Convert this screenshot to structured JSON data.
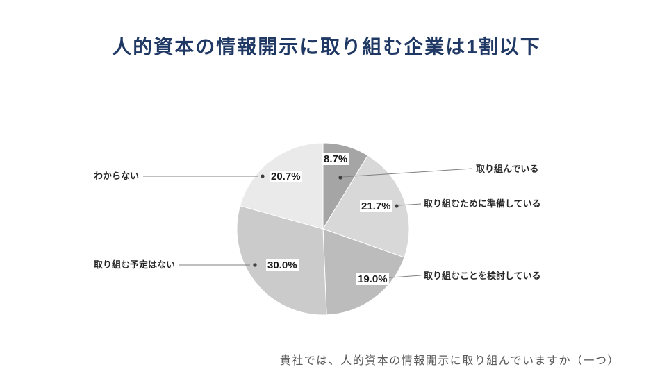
{
  "title": "人的資本の情報開示に取り組む企業は1割以下",
  "footer": "貴社では、人的資本の情報開示に取り組んでいますか（一つ）",
  "chart_data": {
    "type": "pie",
    "title": "人的資本の情報開示に取り組む企業は1割以下",
    "question": "貴社では、人的資本の情報開示に取り組んでいますか（一つ）",
    "unit": "%",
    "start_angle_deg": 0,
    "direction": "clockwise",
    "legend_position": "outside-callouts",
    "slices": [
      {
        "label": "取り組んでいる",
        "value": 8.7,
        "pct": "8.7%",
        "color": "#a5a5a5"
      },
      {
        "label": "取り組むために準備している",
        "value": 21.7,
        "pct": "21.7%",
        "color": "#d8d8d8"
      },
      {
        "label": "取り組むことを検討している",
        "value": 19.0,
        "pct": "19.0%",
        "color": "#bcbcbc"
      },
      {
        "label": "取り組む予定はない",
        "value": 30.0,
        "pct": "30.0%",
        "color": "#cbcbcb"
      },
      {
        "label": "わからない",
        "value": 20.7,
        "pct": "20.7%",
        "color": "#eaeaea"
      }
    ]
  }
}
